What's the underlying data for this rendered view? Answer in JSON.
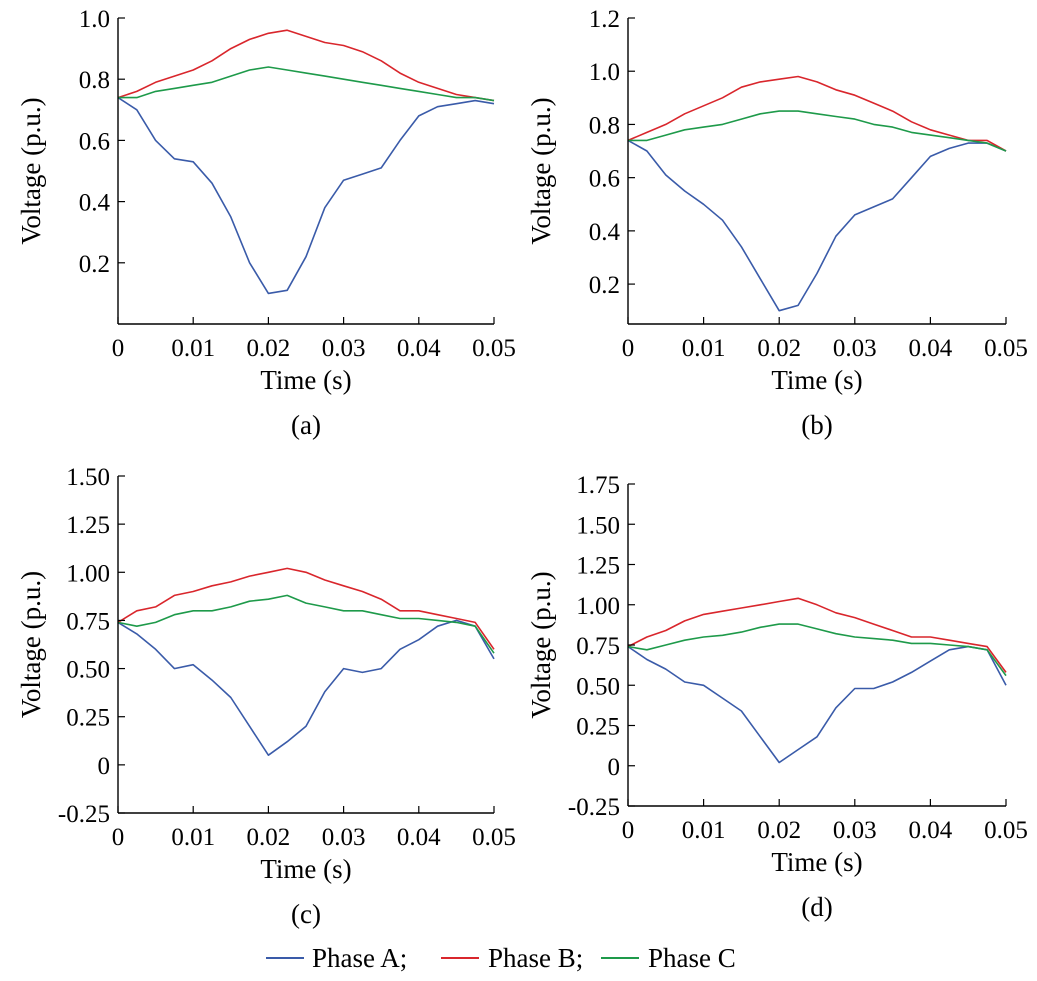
{
  "legend": {
    "items": [
      {
        "label": "Phase A;",
        "color": "#3a5ba9"
      },
      {
        "label": "Phase B;",
        "color": "#d9262c"
      },
      {
        "label": "Phase C",
        "color": "#1e9a4a"
      }
    ]
  },
  "chart_data": [
    {
      "type": "line",
      "panel_label": "(a)",
      "xlabel": "Time (s)",
      "ylabel": "Voltage (p.u.)",
      "xlim": [
        0,
        0.05
      ],
      "ylim": [
        0,
        1.0
      ],
      "xticks": [
        0,
        0.01,
        0.02,
        0.03,
        0.04,
        0.05
      ],
      "xtick_labels": [
        "0",
        "0.01",
        "0.02",
        "0.03",
        "0.04",
        "0.05"
      ],
      "yticks": [
        0.2,
        0.4,
        0.6,
        0.8,
        1.0
      ],
      "ytick_labels": [
        "0.2",
        "0.4",
        "0.6",
        "0.8",
        "1.0"
      ],
      "x": [
        0,
        0.0025,
        0.005,
        0.0075,
        0.01,
        0.0125,
        0.015,
        0.0175,
        0.02,
        0.0225,
        0.025,
        0.0275,
        0.03,
        0.0325,
        0.035,
        0.0375,
        0.04,
        0.0425,
        0.045,
        0.0475,
        0.05
      ],
      "series": [
        {
          "name": "Phase A",
          "color": "#3a5ba9",
          "values": [
            0.74,
            0.7,
            0.6,
            0.54,
            0.53,
            0.46,
            0.35,
            0.2,
            0.1,
            0.11,
            0.22,
            0.38,
            0.47,
            0.49,
            0.51,
            0.6,
            0.68,
            0.71,
            0.72,
            0.73,
            0.72
          ]
        },
        {
          "name": "Phase B",
          "color": "#d9262c",
          "values": [
            0.74,
            0.76,
            0.79,
            0.81,
            0.83,
            0.86,
            0.9,
            0.93,
            0.95,
            0.96,
            0.94,
            0.92,
            0.91,
            0.89,
            0.86,
            0.82,
            0.79,
            0.77,
            0.75,
            0.74,
            0.73
          ]
        },
        {
          "name": "Phase C",
          "color": "#1e9a4a",
          "values": [
            0.74,
            0.74,
            0.76,
            0.77,
            0.78,
            0.79,
            0.81,
            0.83,
            0.84,
            0.83,
            0.82,
            0.81,
            0.8,
            0.79,
            0.78,
            0.77,
            0.76,
            0.75,
            0.74,
            0.74,
            0.73
          ]
        }
      ]
    },
    {
      "type": "line",
      "panel_label": "(b)",
      "xlabel": "Time (s)",
      "ylabel": "Voltage (p.u.)",
      "xlim": [
        0,
        0.05
      ],
      "ylim": [
        0.05,
        1.2
      ],
      "xticks": [
        0,
        0.01,
        0.02,
        0.03,
        0.04,
        0.05
      ],
      "xtick_labels": [
        "0",
        "0.01",
        "0.02",
        "0.03",
        "0.04",
        "0.05"
      ],
      "yticks": [
        0.2,
        0.4,
        0.6,
        0.8,
        1.0,
        1.2
      ],
      "ytick_labels": [
        "0.2",
        "0.4",
        "0.6",
        "0.8",
        "1.0",
        "1.2"
      ],
      "x": [
        0,
        0.0025,
        0.005,
        0.0075,
        0.01,
        0.0125,
        0.015,
        0.0175,
        0.02,
        0.0225,
        0.025,
        0.0275,
        0.03,
        0.0325,
        0.035,
        0.0375,
        0.04,
        0.0425,
        0.045,
        0.0475,
        0.05
      ],
      "series": [
        {
          "name": "Phase A",
          "color": "#3a5ba9",
          "values": [
            0.74,
            0.7,
            0.61,
            0.55,
            0.5,
            0.44,
            0.34,
            0.22,
            0.1,
            0.12,
            0.24,
            0.38,
            0.46,
            0.49,
            0.52,
            0.6,
            0.68,
            0.71,
            0.73,
            0.73,
            0.7
          ]
        },
        {
          "name": "Phase B",
          "color": "#d9262c",
          "values": [
            0.74,
            0.77,
            0.8,
            0.84,
            0.87,
            0.9,
            0.94,
            0.96,
            0.97,
            0.98,
            0.96,
            0.93,
            0.91,
            0.88,
            0.85,
            0.81,
            0.78,
            0.76,
            0.74,
            0.74,
            0.7
          ]
        },
        {
          "name": "Phase C",
          "color": "#1e9a4a",
          "values": [
            0.74,
            0.74,
            0.76,
            0.78,
            0.79,
            0.8,
            0.82,
            0.84,
            0.85,
            0.85,
            0.84,
            0.83,
            0.82,
            0.8,
            0.79,
            0.77,
            0.76,
            0.75,
            0.74,
            0.73,
            0.7
          ]
        }
      ]
    },
    {
      "type": "line",
      "panel_label": "(c)",
      "xlabel": "Time (s)",
      "ylabel": "Voltage (p.u.)",
      "xlim": [
        0,
        0.05
      ],
      "ylim": [
        -0.25,
        1.5
      ],
      "xticks": [
        0,
        0.01,
        0.02,
        0.03,
        0.04,
        0.05
      ],
      "xtick_labels": [
        "0",
        "0.01",
        "0.02",
        "0.03",
        "0.04",
        "0.05"
      ],
      "yticks": [
        -0.25,
        0,
        0.25,
        0.5,
        0.75,
        1.0,
        1.25,
        1.5
      ],
      "ytick_labels": [
        "-0.25",
        "0",
        "0.25",
        "0.50",
        "0.75",
        "1.00",
        "1.25",
        "1.50"
      ],
      "x": [
        0,
        0.0025,
        0.005,
        0.0075,
        0.01,
        0.0125,
        0.015,
        0.0175,
        0.02,
        0.0225,
        0.025,
        0.0275,
        0.03,
        0.0325,
        0.035,
        0.0375,
        0.04,
        0.0425,
        0.045,
        0.0475,
        0.05
      ],
      "series": [
        {
          "name": "Phase A",
          "color": "#3a5ba9",
          "values": [
            0.74,
            0.68,
            0.6,
            0.5,
            0.52,
            0.44,
            0.35,
            0.2,
            0.05,
            0.12,
            0.2,
            0.38,
            0.5,
            0.48,
            0.5,
            0.6,
            0.65,
            0.72,
            0.75,
            0.72,
            0.55
          ]
        },
        {
          "name": "Phase B",
          "color": "#d9262c",
          "values": [
            0.74,
            0.8,
            0.82,
            0.88,
            0.9,
            0.93,
            0.95,
            0.98,
            1.0,
            1.02,
            1.0,
            0.96,
            0.93,
            0.9,
            0.86,
            0.8,
            0.8,
            0.78,
            0.76,
            0.74,
            0.6
          ]
        },
        {
          "name": "Phase C",
          "color": "#1e9a4a",
          "values": [
            0.74,
            0.72,
            0.74,
            0.78,
            0.8,
            0.8,
            0.82,
            0.85,
            0.86,
            0.88,
            0.84,
            0.82,
            0.8,
            0.8,
            0.78,
            0.76,
            0.76,
            0.75,
            0.74,
            0.72,
            0.58
          ]
        }
      ]
    },
    {
      "type": "line",
      "panel_label": "(d)",
      "xlabel": "Time (s)",
      "ylabel": "Voltage (p.u.)",
      "xlim": [
        0,
        0.05
      ],
      "ylim": [
        -0.25,
        1.75
      ],
      "xticks": [
        0,
        0.01,
        0.02,
        0.03,
        0.04,
        0.05
      ],
      "xtick_labels": [
        "0",
        "0.01",
        "0.02",
        "0.03",
        "0.04",
        "0.05"
      ],
      "yticks": [
        -0.25,
        0,
        0.25,
        0.5,
        0.75,
        1.0,
        1.25,
        1.5,
        1.75
      ],
      "ytick_labels": [
        "-0.25",
        "0",
        "0.25",
        "0.50",
        "0.75",
        "1.00",
        "1.25",
        "1.50",
        "1.75"
      ],
      "x": [
        0,
        0.0025,
        0.005,
        0.0075,
        0.01,
        0.0125,
        0.015,
        0.0175,
        0.02,
        0.0225,
        0.025,
        0.0275,
        0.03,
        0.0325,
        0.035,
        0.0375,
        0.04,
        0.0425,
        0.045,
        0.0475,
        0.05
      ],
      "series": [
        {
          "name": "Phase A",
          "color": "#3a5ba9",
          "values": [
            0.74,
            0.66,
            0.6,
            0.52,
            0.5,
            0.42,
            0.34,
            0.18,
            0.02,
            0.1,
            0.18,
            0.36,
            0.48,
            0.48,
            0.52,
            0.58,
            0.65,
            0.72,
            0.74,
            0.72,
            0.5
          ]
        },
        {
          "name": "Phase B",
          "color": "#d9262c",
          "values": [
            0.74,
            0.8,
            0.84,
            0.9,
            0.94,
            0.96,
            0.98,
            1.0,
            1.02,
            1.04,
            1.0,
            0.95,
            0.92,
            0.88,
            0.84,
            0.8,
            0.8,
            0.78,
            0.76,
            0.74,
            0.58
          ]
        },
        {
          "name": "Phase C",
          "color": "#1e9a4a",
          "values": [
            0.74,
            0.72,
            0.75,
            0.78,
            0.8,
            0.81,
            0.83,
            0.86,
            0.88,
            0.88,
            0.85,
            0.82,
            0.8,
            0.79,
            0.78,
            0.76,
            0.76,
            0.75,
            0.74,
            0.72,
            0.56
          ]
        }
      ]
    }
  ]
}
